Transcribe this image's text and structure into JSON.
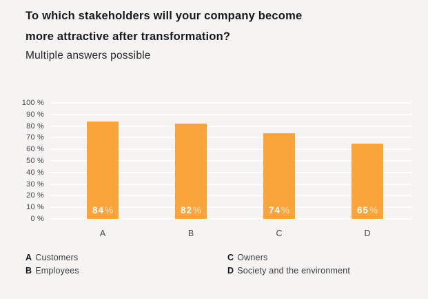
{
  "header": {
    "title_line1": "To which stakeholders will your company become",
    "title_line2": "more attractive after transformation?",
    "subtitle": "Multiple answers possible"
  },
  "chart_data": {
    "type": "bar",
    "title": "To which stakeholders will your company become more attractive after transformation?",
    "subtitle": "Multiple answers possible",
    "categories": [
      "A",
      "B",
      "C",
      "D"
    ],
    "values": [
      84,
      82,
      74,
      65
    ],
    "value_suffix": "%",
    "xlabel": "",
    "ylabel": "",
    "ylim": [
      0,
      100
    ],
    "ytick_step": 10,
    "ytick_suffix": " %",
    "grid": true,
    "legend_position": "bottom"
  },
  "legend": {
    "items": [
      {
        "key": "A",
        "label": "Customers"
      },
      {
        "key": "B",
        "label": "Employees"
      },
      {
        "key": "C",
        "label": "Owners"
      },
      {
        "key": "D",
        "label": "Society and the environment"
      }
    ]
  },
  "colors": {
    "background": "#F5F4F2",
    "gridline": "#FFFFFF",
    "bar": "#FAA53C",
    "title_text": "#17171F",
    "subtitle_text": "#26262E",
    "tick_text": "#46464E",
    "legend_key_text": "#14141C",
    "legend_label_text": "#3A3A42",
    "bar_value_text": "#FFFFFF"
  }
}
